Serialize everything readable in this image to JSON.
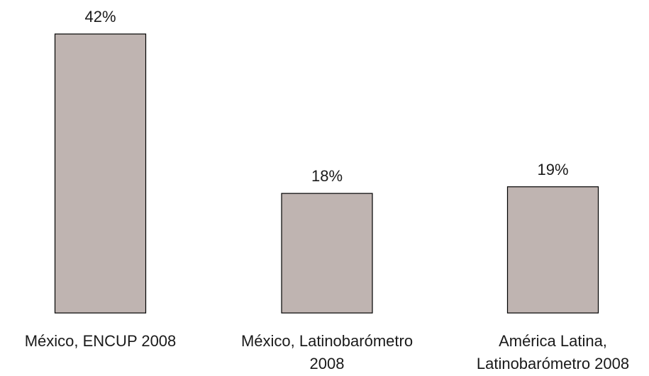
{
  "chart_data": {
    "type": "bar",
    "categories": [
      [
        "México, ENCUP 2008"
      ],
      [
        "México, Latinobarómetro",
        "2008"
      ],
      [
        "América Latina,",
        "Latinobarómetro 2008"
      ]
    ],
    "values": [
      42,
      18,
      19
    ],
    "value_labels": [
      "42%",
      "18%",
      "19%"
    ],
    "unit": "%",
    "ylim": [
      0,
      42
    ],
    "bar_color": "#bfb4b1",
    "bar_edge_color": "#000000",
    "grid": false,
    "axes_visible": false,
    "title": "",
    "xlabel": "",
    "ylabel": ""
  }
}
